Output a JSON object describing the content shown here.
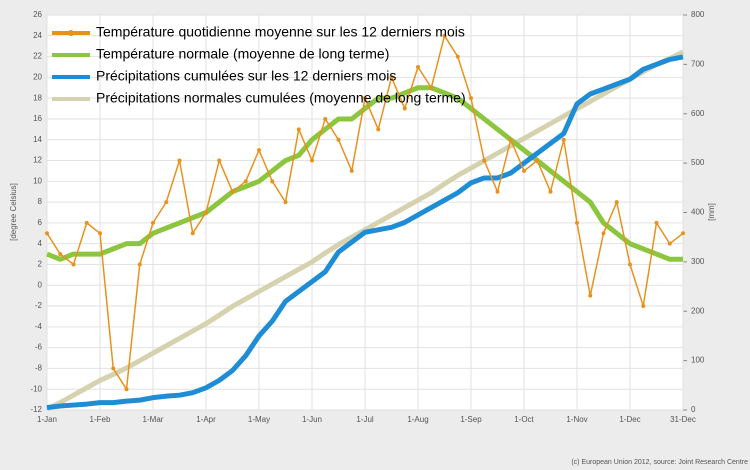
{
  "chart_data": {
    "type": "line",
    "y_label": "[degree Celsius]",
    "y2_label": "[mm]",
    "source": "(c) European Union 2012, source: Joint Research Centre",
    "categories": [
      "1-Jan",
      null,
      null,
      null,
      "1-Feb",
      null,
      null,
      null,
      "1-Mar",
      null,
      null,
      null,
      "1-Apr",
      null,
      null,
      null,
      "1-May",
      null,
      null,
      null,
      "1-Jun",
      null,
      null,
      null,
      "1-Jul",
      null,
      null,
      null,
      "1-Aug",
      null,
      null,
      null,
      "1-Sep",
      null,
      null,
      null,
      "1-Oct",
      null,
      null,
      null,
      "1-Nov",
      null,
      null,
      null,
      "1-Dec",
      null,
      null,
      null,
      "31-Dec"
    ],
    "series": [
      {
        "name": "Température quotidienne moyenne sur les 12 derniers mois",
        "color": "#e8921e",
        "markers": true,
        "values": [
          5,
          3,
          2,
          6,
          5,
          -8,
          -10,
          2,
          6,
          8,
          12,
          5,
          7,
          12,
          9,
          10,
          13,
          10,
          8,
          15,
          12,
          16,
          14,
          11,
          18,
          15,
          20,
          17,
          21,
          19,
          24,
          22,
          18,
          12,
          9,
          14,
          11,
          12,
          9,
          14,
          6,
          -1,
          5,
          8,
          2,
          -2,
          6,
          4,
          5
        ]
      },
      {
        "name": "Température normale (moyenne de long terme)",
        "color": "#8cc63f",
        "markers": false,
        "values": [
          3,
          2.5,
          3,
          3,
          3,
          3.5,
          4,
          4,
          5,
          5.5,
          6,
          6.5,
          7,
          8,
          9,
          9.5,
          10,
          11,
          12,
          12.5,
          14,
          15,
          16,
          16,
          17,
          18,
          18,
          18.5,
          19,
          19,
          18.5,
          18,
          17,
          16,
          15,
          14,
          13,
          12,
          11,
          10,
          9,
          8,
          6,
          5,
          4,
          3.5,
          3,
          2.5,
          2.5
        ]
      },
      {
        "name": "Précipitations cumulées sur les 12 derniers mois",
        "color": "#1f8dd6",
        "axis": "y2",
        "markers": false,
        "values": [
          5,
          8,
          10,
          12,
          15,
          15,
          18,
          20,
          25,
          28,
          30,
          35,
          45,
          60,
          80,
          110,
          150,
          180,
          220,
          240,
          260,
          280,
          320,
          340,
          360,
          365,
          370,
          380,
          395,
          410,
          425,
          440,
          460,
          470,
          470,
          480,
          500,
          520,
          540,
          560,
          620,
          640,
          650,
          660,
          670,
          690,
          700,
          710,
          715
        ]
      },
      {
        "name": "Précipitations normales cumulées (moyenne de long terme)",
        "color": "#d6d2b0",
        "axis": "y2",
        "markers": false,
        "values": [
          2,
          15,
          30,
          45,
          60,
          72,
          85,
          100,
          115,
          130,
          145,
          160,
          175,
          192,
          210,
          225,
          240,
          255,
          270,
          285,
          300,
          318,
          335,
          350,
          365,
          380,
          395,
          410,
          425,
          440,
          458,
          475,
          490,
          505,
          520,
          535,
          550,
          565,
          580,
          595,
          610,
          625,
          640,
          655,
          670,
          685,
          700,
          712,
          725
        ]
      }
    ],
    "ylim": [
      -12,
      26
    ],
    "yticks": [
      -12,
      -10,
      -8,
      -6,
      -4,
      -2,
      0,
      2,
      4,
      6,
      8,
      10,
      12,
      14,
      16,
      18,
      20,
      22,
      24,
      26
    ],
    "y2lim": [
      0,
      800
    ],
    "y2ticks": [
      0,
      100,
      200,
      300,
      400,
      500,
      600,
      700,
      800
    ],
    "grid": true,
    "legend": "top-left"
  }
}
